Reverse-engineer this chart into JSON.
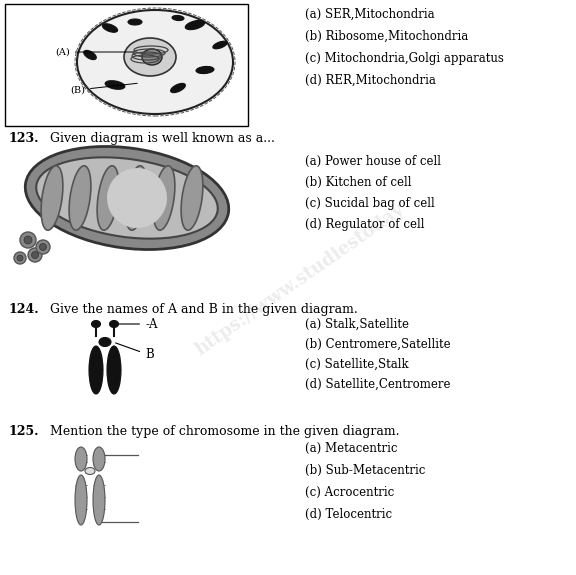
{
  "bg_color": "#ffffff",
  "q122_options": [
    "(a) SER,Mitochondria",
    "(b) Ribosome,Mitochondria",
    "(c) Mitochondria,Golgi apparatus",
    "(d) RER,Mitochondria"
  ],
  "q123_num": "123.",
  "q123_text": "Given diagram is well known as a...",
  "q123_options": [
    "(a) Power house of cell",
    "(b) Kitchen of cell",
    "(c) Sucidal bag of cell",
    "(d) Regulator of cell"
  ],
  "q124_num": "124.",
  "q124_text": "Give the names of A and B in the given diagram.",
  "q124_options": [
    "(a) Stalk,Satellite",
    "(b) Centromere,Satellite",
    "(c) Satellite,Stalk",
    "(d) Satellite,Centromere"
  ],
  "q125_num": "125.",
  "q125_text": "Mention the type of chromosome in the given diagram.",
  "q125_options": [
    "(a) Metacentric",
    "(b) Sub-Metacentric",
    "(c) Acrocentric",
    "(d) Telocentric"
  ],
  "text_color": "#000000",
  "font_size_q": 9.0,
  "font_size_opt": 8.5,
  "font_family": "DejaVu Serif",
  "watermark_text": "https://www.studiestoday",
  "watermark_color": "#aaaaaa",
  "watermark_alpha": 0.22
}
